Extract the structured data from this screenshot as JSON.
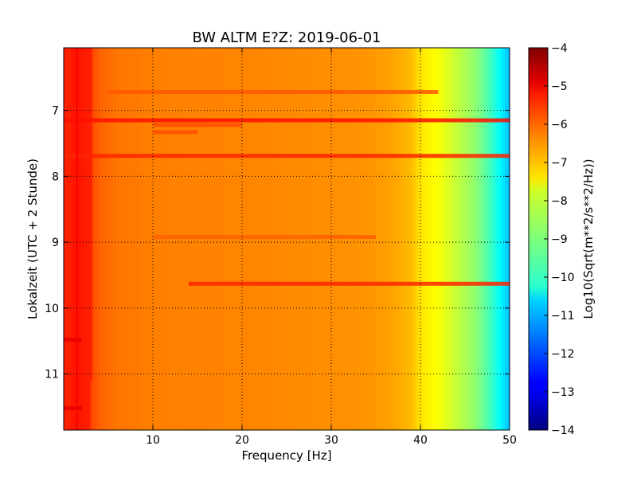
{
  "chart_data": {
    "type": "heatmap",
    "title": "BW ALTM E?Z: 2019-06-01",
    "xlabel": "Frequency [Hz]",
    "ylabel": "Lokalzeit (UTC + 2 Stunde)",
    "xlim": [
      0,
      50
    ],
    "ylim": [
      11.85,
      6.05
    ],
    "y_inverted": true,
    "grid": true,
    "grid_style": "dotted",
    "x_ticks": [
      10,
      20,
      30,
      40,
      50
    ],
    "y_ticks": [
      7,
      8,
      9,
      10,
      11
    ],
    "colormap": "jet",
    "colorbar": {
      "label": "Log10(Sqrt(m**2/s**2/Hz))",
      "range": [
        -14,
        -4
      ],
      "ticks": [
        -4,
        -5,
        -6,
        -7,
        -8,
        -9,
        -10,
        -11,
        -12,
        -13,
        -14
      ]
    },
    "background_profile": {
      "frequency_hz": [
        0,
        1.5,
        3,
        4,
        6,
        10,
        20,
        30,
        34,
        37,
        39,
        40,
        42,
        44,
        46,
        47,
        48,
        49,
        50
      ],
      "log10_amplitude": [
        -6.0,
        -5.6,
        -5.9,
        -6.2,
        -6.4,
        -6.5,
        -6.55,
        -6.65,
        -6.7,
        -6.85,
        -7.1,
        -7.5,
        -7.8,
        -8.3,
        -8.8,
        -9.2,
        -9.7,
        -10.3,
        -10.9
      ]
    },
    "low_frequency_strip": {
      "frequency_hz": [
        0,
        3
      ],
      "log10_amplitude": -5.3
    },
    "horizontal_bands": [
      {
        "time_h": 6.72,
        "f_from": 5,
        "f_to": 42,
        "log10_amplitude": -6.1
      },
      {
        "time_h": 7.15,
        "f_from": 0,
        "f_to": 50,
        "log10_amplitude": -5.4
      },
      {
        "time_h": 7.22,
        "f_from": 10,
        "f_to": 20,
        "log10_amplitude": -6.0
      },
      {
        "time_h": 7.33,
        "f_from": 10,
        "f_to": 15,
        "log10_amplitude": -6.0
      },
      {
        "time_h": 7.69,
        "f_from": 0,
        "f_to": 50,
        "log10_amplitude": -5.6
      },
      {
        "time_h": 8.92,
        "f_from": 10,
        "f_to": 35,
        "log10_amplitude": -6.2
      },
      {
        "time_h": 9.63,
        "f_from": 14,
        "f_to": 50,
        "log10_amplitude": -5.6
      },
      {
        "time_h": 10.48,
        "f_from": 0,
        "f_to": 2,
        "log10_amplitude": -5.0
      },
      {
        "time_h": 11.52,
        "f_from": 0,
        "f_to": 2,
        "log10_amplitude": -5.0
      }
    ],
    "vertical_lines": [
      {
        "frequency_hz": 1.5,
        "time_from": 6.05,
        "time_to": 11.85,
        "log10_amplitude": -5.2
      },
      {
        "frequency_hz": 3.1,
        "time_from": 6.05,
        "time_to": 11.1,
        "log10_amplitude": -5.5
      }
    ]
  }
}
